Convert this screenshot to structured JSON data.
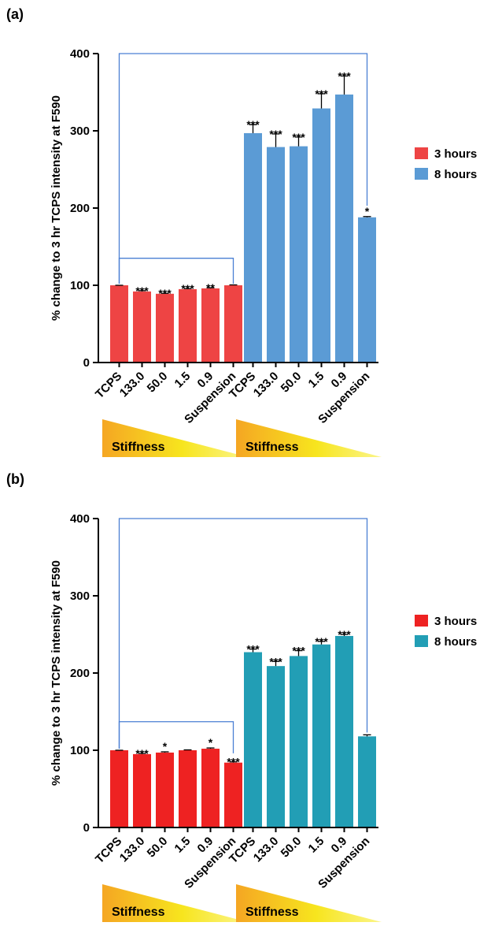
{
  "chart_data": [
    {
      "type": "bar",
      "panel": "(a)",
      "ylabel": "% change to 3 hr TCPS intensity at F590",
      "ylim": [
        0,
        400
      ],
      "yticks": [
        0,
        100,
        200,
        300,
        400
      ],
      "categories": [
        "TCPS",
        "133.0",
        "50.0",
        "1.5",
        "0.9",
        "Suspension"
      ],
      "stiffness_label": "Stiffness",
      "legend_position": "right",
      "series": [
        {
          "name": "3 hours",
          "color": "#EE4444",
          "values": [
            100,
            92,
            89,
            95,
            96,
            100
          ],
          "errors": [
            0,
            1,
            0.6,
            0.8,
            0.8,
            0.5
          ],
          "significance": [
            "",
            "***",
            "***",
            "***",
            "**",
            ""
          ]
        },
        {
          "name": "8 hours",
          "color": "#5B9BD5",
          "values": [
            297,
            279,
            280,
            329,
            347,
            188
          ],
          "errors": [
            11,
            17,
            12,
            19,
            24,
            1
          ],
          "significance": [
            "***",
            "***",
            "***",
            "***",
            "***",
            "*"
          ]
        }
      ]
    },
    {
      "type": "bar",
      "panel": "(b)",
      "ylabel": "% change to 3 hr TCPS intensity at F590",
      "ylim": [
        0,
        400
      ],
      "yticks": [
        0,
        100,
        200,
        300,
        400
      ],
      "categories": [
        "TCPS",
        "133.0",
        "50.0",
        "1.5",
        "0.9",
        "Suspension"
      ],
      "stiffness_label": "Stiffness",
      "legend_position": "right",
      "series": [
        {
          "name": "3 hours",
          "color": "#EE2222",
          "values": [
            100,
            95,
            97,
            100,
            102,
            84
          ],
          "errors": [
            0,
            1,
            1,
            0.5,
            1,
            1
          ],
          "significance": [
            "",
            "***",
            "*",
            "",
            "*",
            "***"
          ]
        },
        {
          "name": "8 hours",
          "color": "#229EB5",
          "values": [
            227,
            209,
            222,
            237,
            248,
            118
          ],
          "errors": [
            4,
            6,
            7,
            4,
            2,
            2
          ],
          "significance": [
            "***",
            "***",
            "***",
            "***",
            "***",
            ""
          ]
        }
      ]
    }
  ]
}
